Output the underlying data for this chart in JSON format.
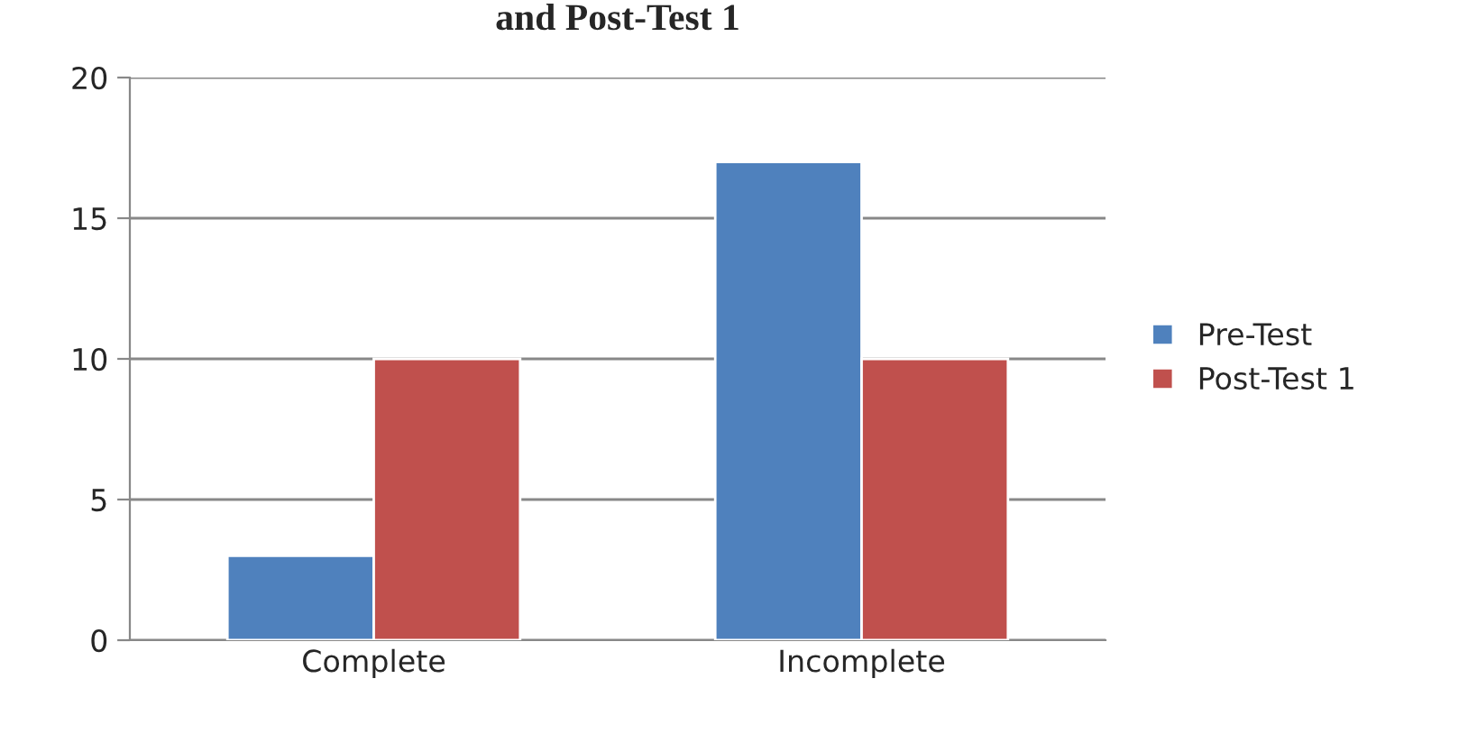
{
  "chart_data": {
    "type": "bar",
    "title": "and Post-Test 1",
    "categories": [
      "Complete",
      "Incomplete"
    ],
    "series": [
      {
        "name": "Pre-Test",
        "color": "#4f81bd",
        "values": [
          3,
          17
        ]
      },
      {
        "name": "Post-Test 1",
        "color": "#c0504d",
        "values": [
          10,
          10
        ]
      }
    ],
    "ylim": [
      0,
      20
    ],
    "yticks": [
      0,
      5,
      10,
      15,
      20
    ],
    "grid": "y",
    "legend": "right"
  }
}
